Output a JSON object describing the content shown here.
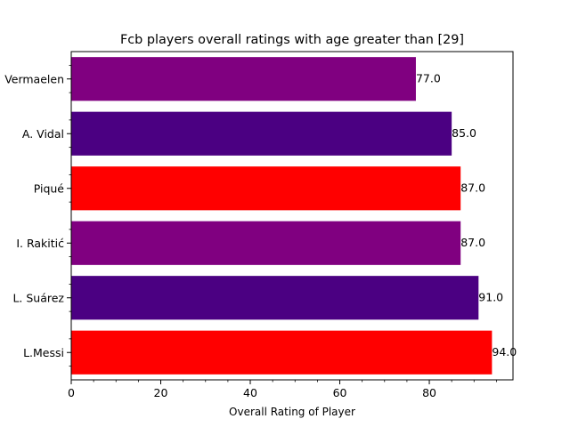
{
  "chart_data": {
    "type": "bar",
    "orientation": "horizontal",
    "title": "Fcb players overall ratings with age greater than [29]",
    "xlabel": "Overall Rating of Player",
    "ylabel": "",
    "xlim": [
      0,
      98.7
    ],
    "x_ticks": [
      0,
      20,
      40,
      60,
      80
    ],
    "x_tick_labels": [
      "0",
      "20",
      "40",
      "60",
      "80"
    ],
    "x_minor_step": 5,
    "grid": false,
    "categories": [
      "L.Messi",
      "L. Suárez",
      "I. Rakitić",
      "Piqué",
      "A. Vidal",
      "Vermaelen"
    ],
    "values": [
      94.0,
      91.0,
      87.0,
      87.0,
      85.0,
      77.0
    ],
    "value_labels": [
      "94.0",
      "91.0",
      "87.0",
      "87.0",
      "85.0",
      "77.0"
    ],
    "bar_colors": [
      "#ff0000",
      "#4b0082",
      "#800080",
      "#ff0000",
      "#4b0082",
      "#800080"
    ]
  }
}
